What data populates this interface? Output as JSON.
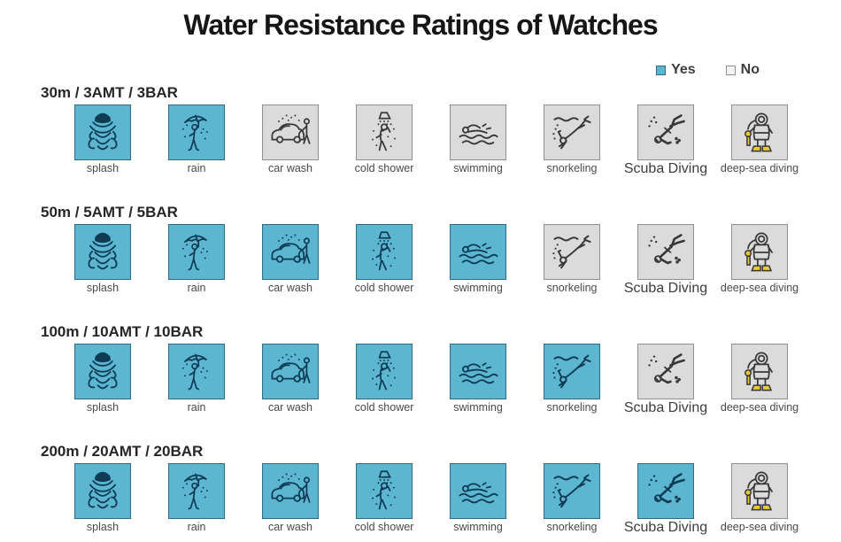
{
  "title": "Water Resistance Ratings of Watches",
  "legend": {
    "yes_label": "Yes",
    "no_label": "No"
  },
  "colors": {
    "yes_fill": "#5cb6d0",
    "yes_border": "#2f6c83",
    "no_fill": "#dbdbdb",
    "no_border": "#8f8f8f",
    "art_yes": "#0e3c55",
    "art_no": "#383838",
    "accent_yellow": "#e8c93a",
    "title_color": "#161616",
    "text_color": "#3d3d3d"
  },
  "activities": [
    {
      "id": "splash",
      "label": "splash"
    },
    {
      "id": "rain",
      "label": "rain"
    },
    {
      "id": "car-wash",
      "label": "car wash"
    },
    {
      "id": "cold-shower",
      "label": "cold shower"
    },
    {
      "id": "swimming",
      "label": "swimming"
    },
    {
      "id": "snorkeling",
      "label": "snorkeling"
    },
    {
      "id": "scuba-diving",
      "label": "Scuba Diving"
    },
    {
      "id": "deep-sea-diving",
      "label": "deep-sea diving"
    }
  ],
  "rows": [
    {
      "header": "30m / 3AMT / 3BAR",
      "ratings": [
        "yes",
        "yes",
        "no",
        "no",
        "no",
        "no",
        "no",
        "no"
      ]
    },
    {
      "header": "50m / 5AMT / 5BAR",
      "ratings": [
        "yes",
        "yes",
        "yes",
        "yes",
        "yes",
        "no",
        "no",
        "no"
      ]
    },
    {
      "header": "100m / 10AMT / 10BAR",
      "ratings": [
        "yes",
        "yes",
        "yes",
        "yes",
        "yes",
        "yes",
        "no",
        "no"
      ]
    },
    {
      "header": "200m / 20AMT / 20BAR",
      "ratings": [
        "yes",
        "yes",
        "yes",
        "yes",
        "yes",
        "yes",
        "yes",
        "no"
      ]
    }
  ],
  "chart_data": {
    "type": "table",
    "title": "Water Resistance Ratings of Watches",
    "legend_entries": [
      "Yes",
      "No"
    ],
    "columns": [
      "splash",
      "rain",
      "car wash",
      "cold shower",
      "swimming",
      "snorkeling",
      "Scuba Diving",
      "deep-sea diving"
    ],
    "rows": [
      "30m / 3AMT / 3BAR",
      "50m / 5AMT / 5BAR",
      "100m / 10AMT / 10BAR",
      "200m / 20AMT / 20BAR"
    ],
    "values": [
      [
        "yes",
        "yes",
        "no",
        "no",
        "no",
        "no",
        "no",
        "no"
      ],
      [
        "yes",
        "yes",
        "yes",
        "yes",
        "yes",
        "no",
        "no",
        "no"
      ],
      [
        "yes",
        "yes",
        "yes",
        "yes",
        "yes",
        "yes",
        "no",
        "no"
      ],
      [
        "yes",
        "yes",
        "yes",
        "yes",
        "yes",
        "yes",
        "yes",
        "no"
      ]
    ],
    "layout_hints": {
      "yes_color": "#5cb6d0",
      "no_color": "#dbdbdb",
      "legend_position": "top-right"
    }
  }
}
